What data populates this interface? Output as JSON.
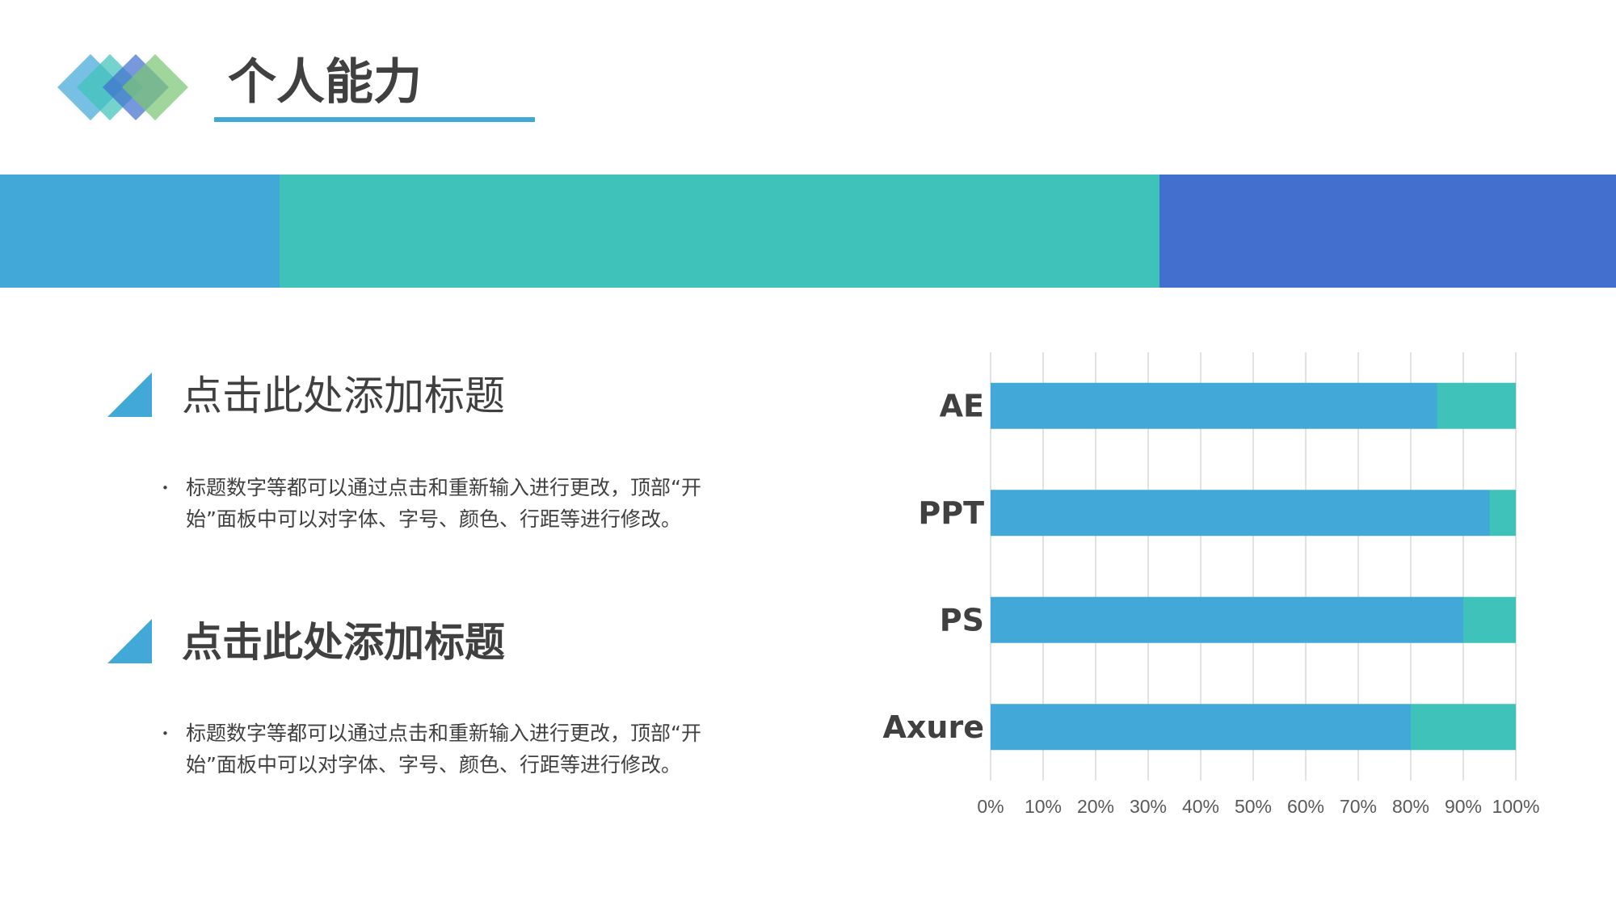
{
  "header": {
    "title": "个人能力",
    "accent_color": "#42a8d8"
  },
  "band": {
    "colors": [
      "#42a8d8",
      "#3ec2b9",
      "#4370cf"
    ]
  },
  "logo": {
    "colors": [
      "#42a8d8",
      "#3ec2b9",
      "#4370cf",
      "#7cc576"
    ]
  },
  "sections": [
    {
      "heading": "点击此处添加标题",
      "bullet": "•",
      "body": "标题数字等都可以通过点击和重新输入进行更改，顶部“开始”面板中可以对字体、字号、颜色、行距等进行修改。"
    },
    {
      "heading": "点击此处添加标题",
      "bullet": "•",
      "body": "标题数字等都可以通过点击和重新输入进行更改，顶部“开始”面板中可以对字体、字号、颜色、行距等进行修改。"
    }
  ],
  "chart_data": {
    "type": "bar",
    "orientation": "horizontal",
    "stacked": true,
    "categories": [
      "AE",
      "PPT",
      "PS",
      "Axure"
    ],
    "series": [
      {
        "values": [
          85,
          95,
          90,
          80
        ],
        "color": "#42a8d8"
      },
      {
        "values": [
          15,
          5,
          10,
          20
        ],
        "color": "#3ec2b9"
      }
    ],
    "xlim": [
      0,
      100
    ],
    "xticks": [
      "0%",
      "10%",
      "20%",
      "30%",
      "40%",
      "50%",
      "60%",
      "70%",
      "80%",
      "90%",
      "100%"
    ],
    "grid": "vertical",
    "gridColor": "#d9d9d9",
    "title": "",
    "xlabel": "",
    "ylabel": ""
  }
}
